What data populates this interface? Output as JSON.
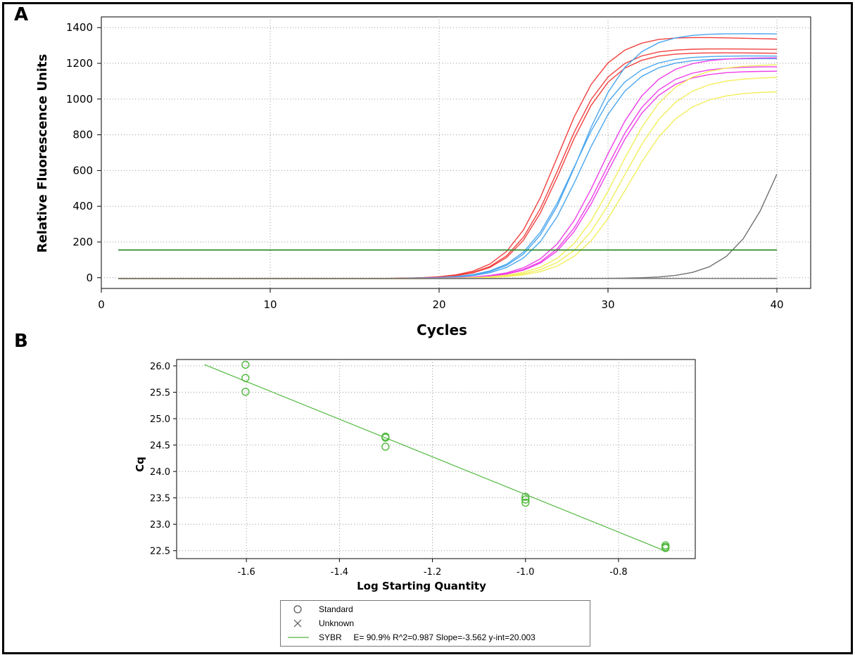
{
  "panels": {
    "a_label": "A",
    "b_label": "B"
  },
  "colors": {
    "red": "#f0413f",
    "blue": "#4aa6ef",
    "magenta": "#ee3ee8",
    "yellow": "#f2ee5a",
    "threshold": "#2e8b2e",
    "ntc": "#707070",
    "sybr": "#4fb83c"
  },
  "chart_data": [
    {
      "type": "line",
      "panel": "A",
      "title": "",
      "xlabel": "Cycles",
      "ylabel": "Relative Fluorescence Units",
      "xlim": [
        0,
        42
      ],
      "ylim": [
        -60,
        1460
      ],
      "xticks": [
        0,
        10,
        20,
        30,
        40
      ],
      "yticks": [
        0,
        200,
        400,
        600,
        800,
        1000,
        1200,
        1400
      ],
      "grid": true,
      "threshold": 155,
      "cycles": [
        1,
        40
      ],
      "series": [
        {
          "color": "red",
          "curve": {
            "plateau": 1360,
            "midpoint": 27.0,
            "slope": 1.45,
            "baseline": -5,
            "drop": 0.2
          }
        },
        {
          "color": "red",
          "curve": {
            "plateau": 1292,
            "midpoint": 27.2,
            "slope": 1.45,
            "baseline": -5,
            "drop": 0.1
          }
        },
        {
          "color": "red",
          "curve": {
            "plateau": 1270,
            "midpoint": 27.3,
            "slope": 1.45,
            "baseline": -5,
            "drop": 0.1
          }
        },
        {
          "color": "blue",
          "curve": {
            "plateau": 1378,
            "midpoint": 28.3,
            "slope": 1.5,
            "baseline": -5,
            "drop": 0.1
          }
        },
        {
          "color": "blue",
          "curve": {
            "plateau": 1250,
            "midpoint": 28.0,
            "slope": 1.5,
            "baseline": -5,
            "drop": 0.05
          }
        },
        {
          "color": "blue",
          "curve": {
            "plateau": 1235,
            "midpoint": 28.4,
            "slope": 1.5,
            "baseline": -5,
            "drop": 0.05
          }
        },
        {
          "color": "magenta",
          "curve": {
            "plateau": 1240,
            "midpoint": 29.6,
            "slope": 1.55,
            "baseline": -5,
            "drop": 0.05
          }
        },
        {
          "color": "magenta",
          "curve": {
            "plateau": 1190,
            "midpoint": 29.8,
            "slope": 1.55,
            "baseline": -5,
            "drop": 0.05
          }
        },
        {
          "color": "magenta",
          "curve": {
            "plateau": 1165,
            "midpoint": 29.9,
            "slope": 1.55,
            "baseline": -5,
            "drop": 0.05
          }
        },
        {
          "color": "yellow",
          "curve": {
            "plateau": 1200,
            "midpoint": 30.6,
            "slope": 1.6,
            "baseline": -5,
            "drop": 0.0
          }
        },
        {
          "color": "yellow",
          "curve": {
            "plateau": 1130,
            "midpoint": 30.9,
            "slope": 1.6,
            "baseline": -5,
            "drop": 0.0
          }
        },
        {
          "color": "yellow",
          "curve": {
            "plateau": 1050,
            "midpoint": 31.2,
            "slope": 1.6,
            "baseline": -5,
            "drop": 0.0
          }
        },
        {
          "color": "ntc",
          "curve": {
            "plateau": 1400,
            "midpoint": 40.5,
            "slope": 1.5,
            "baseline": -5,
            "drop": 0.0
          }
        },
        {
          "color": "ntc",
          "curve": {
            "plateau": 0,
            "midpoint": 100,
            "slope": 1,
            "baseline": -4,
            "drop": 0.0
          }
        }
      ]
    },
    {
      "type": "scatter",
      "panel": "B",
      "title": "",
      "xlabel": "Log Starting Quantity",
      "ylabel": "Cq",
      "xlim": [
        -1.75,
        -0.635
      ],
      "ylim": [
        22.35,
        26.12
      ],
      "xticks": [
        -1.6,
        -1.4,
        -1.2,
        -1.0,
        -0.8
      ],
      "yticks": [
        22.5,
        23.0,
        23.5,
        24.0,
        24.5,
        25.0,
        25.5,
        26.0
      ],
      "grid": true,
      "points": [
        {
          "x": -1.602,
          "y": 26.02
        },
        {
          "x": -1.602,
          "y": 25.77
        },
        {
          "x": -1.602,
          "y": 25.51
        },
        {
          "x": -1.301,
          "y": 24.66
        },
        {
          "x": -1.301,
          "y": 24.64
        },
        {
          "x": -1.301,
          "y": 24.47
        },
        {
          "x": -1.0,
          "y": 23.52
        },
        {
          "x": -1.0,
          "y": 23.47
        },
        {
          "x": -1.0,
          "y": 23.41
        },
        {
          "x": -0.699,
          "y": 22.6
        },
        {
          "x": -0.699,
          "y": 22.57
        },
        {
          "x": -0.699,
          "y": 22.55
        }
      ],
      "fit": {
        "slope": -3.562,
        "intercept": 20.003,
        "x_range": [
          -1.69,
          -0.699
        ]
      },
      "legend": [
        {
          "symbol": "circle",
          "label": "Standard"
        },
        {
          "symbol": "cross",
          "label": "Unknown"
        },
        {
          "symbol": "line",
          "label": "SYBR     E= 90.9% R^2=0.987 Slope=-3.562 y-int=20.003"
        }
      ]
    }
  ]
}
